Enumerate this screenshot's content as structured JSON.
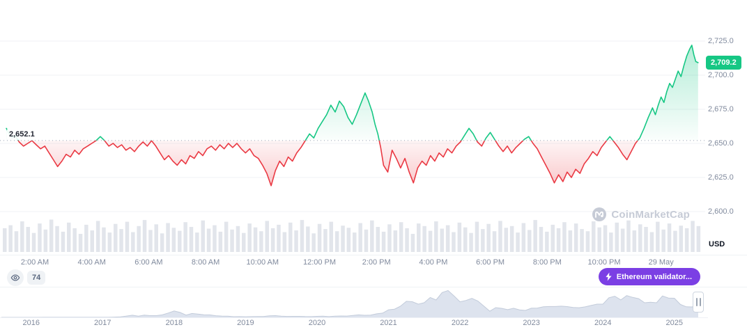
{
  "y_axis": {
    "ticks": [
      "2,725.0",
      "2,700.0",
      "2,675.0",
      "2,650.0",
      "2,625.0",
      "2,600.0"
    ],
    "unit": "USD"
  },
  "current_price": {
    "label": "2,709.2"
  },
  "reference_price": {
    "label": "2,652.1"
  },
  "x_axis": {
    "labels": [
      "2:00 AM",
      "4:00 AM",
      "6:00 AM",
      "8:00 AM",
      "10:00 AM",
      "12:00 PM",
      "2:00 PM",
      "4:00 PM",
      "6:00 PM",
      "8:00 PM",
      "10:00 PM",
      "29 May"
    ]
  },
  "watch": {
    "count": "74"
  },
  "promo": {
    "label": "Ethereum validator...",
    "color": "#7b3fe4"
  },
  "watermark": {
    "label": "CoinMarketCap"
  },
  "navigator": {
    "years": [
      "2016",
      "2017",
      "2018",
      "2019",
      "2020",
      "2021",
      "2022",
      "2023",
      "2024",
      "2025"
    ]
  },
  "chart_data": {
    "type": "line",
    "title": "ETH/USD intraday price",
    "unit": "USD",
    "open": 2652.1,
    "last": 2709.2,
    "high": 2722,
    "low": 2619,
    "ylim": [
      2600,
      2725
    ],
    "y_ticks": [
      2725,
      2700,
      2675,
      2650,
      2625,
      2600
    ],
    "x_tick_hours": [
      2,
      4,
      6,
      8,
      10,
      12,
      14,
      16,
      18,
      20,
      22,
      24
    ],
    "up_color": "#16c784",
    "down_color": "#ea3943",
    "grid_color": "#eff2f5",
    "points": [
      [
        1.0,
        2661
      ],
      [
        1.1,
        2657
      ],
      [
        1.2,
        2654
      ],
      [
        1.3,
        2656
      ],
      [
        1.45,
        2651
      ],
      [
        1.6,
        2648
      ],
      [
        1.75,
        2650
      ],
      [
        1.9,
        2652
      ],
      [
        2.05,
        2649
      ],
      [
        2.2,
        2646
      ],
      [
        2.35,
        2648
      ],
      [
        2.5,
        2643
      ],
      [
        2.65,
        2638
      ],
      [
        2.8,
        2633
      ],
      [
        2.95,
        2637
      ],
      [
        3.1,
        2642
      ],
      [
        3.25,
        2640
      ],
      [
        3.4,
        2645
      ],
      [
        3.55,
        2642
      ],
      [
        3.7,
        2646
      ],
      [
        3.85,
        2648
      ],
      [
        4.0,
        2650
      ],
      [
        4.15,
        2652
      ],
      [
        4.3,
        2655
      ],
      [
        4.45,
        2652
      ],
      [
        4.6,
        2648
      ],
      [
        4.75,
        2650
      ],
      [
        4.9,
        2647
      ],
      [
        5.05,
        2649
      ],
      [
        5.2,
        2645
      ],
      [
        5.35,
        2647
      ],
      [
        5.5,
        2644
      ],
      [
        5.65,
        2648
      ],
      [
        5.8,
        2651
      ],
      [
        5.95,
        2648
      ],
      [
        6.1,
        2652
      ],
      [
        6.25,
        2648
      ],
      [
        6.4,
        2643
      ],
      [
        6.55,
        2638
      ],
      [
        6.7,
        2641
      ],
      [
        6.85,
        2637
      ],
      [
        7.0,
        2634
      ],
      [
        7.15,
        2638
      ],
      [
        7.3,
        2635
      ],
      [
        7.45,
        2641
      ],
      [
        7.6,
        2639
      ],
      [
        7.75,
        2644
      ],
      [
        7.9,
        2641
      ],
      [
        8.05,
        2646
      ],
      [
        8.2,
        2648
      ],
      [
        8.35,
        2645
      ],
      [
        8.5,
        2649
      ],
      [
        8.65,
        2646
      ],
      [
        8.8,
        2650
      ],
      [
        8.95,
        2647
      ],
      [
        9.1,
        2650
      ],
      [
        9.25,
        2646
      ],
      [
        9.4,
        2643
      ],
      [
        9.55,
        2646
      ],
      [
        9.7,
        2641
      ],
      [
        9.85,
        2639
      ],
      [
        10.0,
        2634
      ],
      [
        10.15,
        2628
      ],
      [
        10.3,
        2619
      ],
      [
        10.45,
        2630
      ],
      [
        10.6,
        2637
      ],
      [
        10.75,
        2633
      ],
      [
        10.9,
        2640
      ],
      [
        11.05,
        2637
      ],
      [
        11.2,
        2643
      ],
      [
        11.35,
        2647
      ],
      [
        11.5,
        2652
      ],
      [
        11.65,
        2657
      ],
      [
        11.8,
        2654
      ],
      [
        11.95,
        2661
      ],
      [
        12.1,
        2666
      ],
      [
        12.25,
        2671
      ],
      [
        12.4,
        2678
      ],
      [
        12.55,
        2673
      ],
      [
        12.7,
        2681
      ],
      [
        12.85,
        2677
      ],
      [
        13.0,
        2669
      ],
      [
        13.15,
        2664
      ],
      [
        13.3,
        2671
      ],
      [
        13.45,
        2679
      ],
      [
        13.6,
        2687
      ],
      [
        13.72,
        2681
      ],
      [
        13.85,
        2673
      ],
      [
        13.95,
        2664
      ],
      [
        14.05,
        2657
      ],
      [
        14.15,
        2647
      ],
      [
        14.25,
        2634
      ],
      [
        14.4,
        2629
      ],
      [
        14.55,
        2645
      ],
      [
        14.7,
        2639
      ],
      [
        14.85,
        2632
      ],
      [
        15.0,
        2639
      ],
      [
        15.15,
        2629
      ],
      [
        15.3,
        2621
      ],
      [
        15.45,
        2632
      ],
      [
        15.6,
        2637
      ],
      [
        15.75,
        2634
      ],
      [
        15.9,
        2641
      ],
      [
        16.05,
        2637
      ],
      [
        16.2,
        2643
      ],
      [
        16.35,
        2640
      ],
      [
        16.5,
        2646
      ],
      [
        16.65,
        2643
      ],
      [
        16.8,
        2648
      ],
      [
        16.95,
        2651
      ],
      [
        17.1,
        2656
      ],
      [
        17.25,
        2661
      ],
      [
        17.4,
        2657
      ],
      [
        17.55,
        2651
      ],
      [
        17.7,
        2648
      ],
      [
        17.85,
        2654
      ],
      [
        18.0,
        2658
      ],
      [
        18.15,
        2653
      ],
      [
        18.3,
        2648
      ],
      [
        18.45,
        2644
      ],
      [
        18.6,
        2648
      ],
      [
        18.75,
        2643
      ],
      [
        18.9,
        2647
      ],
      [
        19.05,
        2650
      ],
      [
        19.2,
        2653
      ],
      [
        19.35,
        2655
      ],
      [
        19.5,
        2650
      ],
      [
        19.65,
        2646
      ],
      [
        19.8,
        2640
      ],
      [
        19.95,
        2634
      ],
      [
        20.1,
        2628
      ],
      [
        20.25,
        2621
      ],
      [
        20.4,
        2627
      ],
      [
        20.55,
        2622
      ],
      [
        20.7,
        2629
      ],
      [
        20.85,
        2625
      ],
      [
        21.0,
        2631
      ],
      [
        21.15,
        2628
      ],
      [
        21.3,
        2635
      ],
      [
        21.45,
        2639
      ],
      [
        21.6,
        2644
      ],
      [
        21.75,
        2641
      ],
      [
        21.9,
        2647
      ],
      [
        22.05,
        2651
      ],
      [
        22.2,
        2655
      ],
      [
        22.35,
        2651
      ],
      [
        22.5,
        2647
      ],
      [
        22.65,
        2642
      ],
      [
        22.8,
        2638
      ],
      [
        22.95,
        2644
      ],
      [
        23.1,
        2650
      ],
      [
        23.25,
        2654
      ],
      [
        23.4,
        2661
      ],
      [
        23.55,
        2669
      ],
      [
        23.7,
        2676
      ],
      [
        23.8,
        2671
      ],
      [
        23.9,
        2678
      ],
      [
        24.0,
        2684
      ],
      [
        24.1,
        2680
      ],
      [
        24.2,
        2688
      ],
      [
        24.3,
        2694
      ],
      [
        24.4,
        2691
      ],
      [
        24.5,
        2697
      ],
      [
        24.6,
        2703
      ],
      [
        24.7,
        2699
      ],
      [
        24.8,
        2707
      ],
      [
        24.9,
        2714
      ],
      [
        25.0,
        2719
      ],
      [
        25.08,
        2722
      ],
      [
        25.15,
        2715
      ],
      [
        25.22,
        2710
      ],
      [
        25.3,
        2709.2
      ]
    ],
    "volume": [
      0.55,
      0.62,
      0.48,
      0.71,
      0.58,
      0.44,
      0.66,
      0.52,
      0.75,
      0.6,
      0.47,
      0.68,
      0.55,
      0.42,
      0.63,
      0.5,
      0.72,
      0.57,
      0.45,
      0.65,
      0.53,
      0.7,
      0.46,
      0.6,
      0.74,
      0.51,
      0.64,
      0.43,
      0.67,
      0.56,
      0.49,
      0.69,
      0.58,
      0.45,
      0.73,
      0.54,
      0.62,
      0.47,
      0.7,
      0.52,
      0.6,
      0.44,
      0.66,
      0.57,
      0.48,
      0.72,
      0.55,
      0.63,
      0.46,
      0.68,
      0.5,
      0.74,
      0.59,
      0.43,
      0.65,
      0.53,
      0.7,
      0.48,
      0.61,
      0.56,
      0.45,
      0.67,
      0.52,
      0.73,
      0.58,
      0.47,
      0.64,
      0.5,
      0.69,
      0.55,
      0.42,
      0.66,
      0.6,
      0.49,
      0.71,
      0.54,
      0.62,
      0.46,
      0.68,
      0.57,
      0.44,
      0.7,
      0.53,
      0.65,
      0.48,
      0.72,
      0.56,
      0.6,
      0.45,
      0.67,
      0.51,
      0.74,
      0.58,
      0.47,
      0.63,
      0.55,
      0.69,
      0.5,
      0.66,
      0.53,
      0.48,
      0.71,
      0.57,
      0.62,
      0.45,
      0.68,
      0.54,
      0.73,
      0.5,
      0.64,
      0.58,
      0.46,
      0.7,
      0.52,
      0.66,
      0.49,
      0.61,
      0.55,
      0.72,
      0.6
    ],
    "navigator": {
      "type": "area",
      "start": "2015-08",
      "end": "2025-05",
      "max": 4800,
      "monthly_values": [
        1,
        1,
        1,
        1,
        1,
        1,
        6,
        11,
        9,
        12,
        12,
        11,
        11,
        13,
        11,
        10,
        8,
        11,
        16,
        50,
        80,
        230,
        370,
        200,
        385,
        300,
        305,
        430,
        740,
        1100,
        850,
        400,
        670,
        580,
        450,
        430,
        283,
        230,
        200,
        115,
        135,
        105,
        135,
        140,
        160,
        265,
        300,
        215,
        170,
        180,
        180,
        150,
        130,
        180,
        220,
        135,
        205,
        245,
        225,
        335,
        430,
        360,
        385,
        615,
        735,
        1310,
        1415,
        1920,
        2770,
        2705,
        2275,
        2530,
        3430,
        3000,
        4290,
        4630,
        3680,
        2685,
        2920,
        3280,
        2815,
        1940,
        1070,
        1680,
        1555,
        1330,
        1570,
        1295,
        1195,
        1585,
        1605,
        1820,
        1870,
        1875,
        1935,
        1855,
        1705,
        1670,
        1815,
        2050,
        2280,
        2285,
        3385,
        3645,
        3010,
        3760,
        3440,
        3230,
        2525,
        2600,
        2520,
        3700,
        3335,
        3300,
        2235,
        1820,
        1795,
        2700
      ]
    }
  }
}
